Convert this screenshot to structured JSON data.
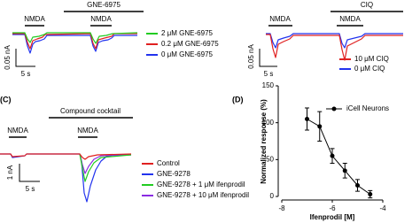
{
  "panels": [
    {
      "compound_label": "GNE-6975",
      "stimulus_labels": [
        "NMDA",
        "NMDA"
      ],
      "scale_y": "0.05 nA",
      "scale_x": "5 s",
      "legend": [
        {
          "name": "2 μM GNE-6975",
          "color": "#22cc22"
        },
        {
          "name": "0.2 μM GNE-6975",
          "color": "#e02020"
        },
        {
          "name": "0 μM GNE-6975",
          "color": "#2233ee"
        }
      ]
    },
    {
      "compound_label": "CIQ",
      "stimulus_labels": [
        "NMDA",
        "NMDA"
      ],
      "scale_y": "0.05 nA",
      "scale_x": "5 s",
      "legend": [
        {
          "name": "10 μM CIQ",
          "color": "#e02020"
        },
        {
          "name": "0 μM CIQ",
          "color": "#2233ee"
        }
      ]
    },
    {
      "panel_label": "(C)",
      "compound_label": "Compound cocktail",
      "stimulus_labels": [
        "NMDA",
        "NMDA"
      ],
      "scale_y": "1 nA",
      "scale_x": "5 s",
      "legend": [
        {
          "name": "Control",
          "color": "#e02020"
        },
        {
          "name": "GNE-9278",
          "color": "#2233ee"
        },
        {
          "name": "GNE-9278 + 1 μM ifenprodil",
          "color": "#22cc22"
        },
        {
          "name": "GNE-9278 + 10 μM ifenprodil",
          "color": "#8a2be2"
        }
      ]
    }
  ],
  "chart_data": {
    "type": "scatter",
    "panel_label": "(D)",
    "x_label": "Ifenprodil [M]",
    "y_label": "Normalized response (%)",
    "x": [
      -7,
      -6.5,
      -6,
      -5.5,
      -5,
      -4.5
    ],
    "series": [
      {
        "name": "iCell Neurons",
        "color": "#000000",
        "values": [
          105,
          95,
          55,
          35,
          15,
          3
        ],
        "errors": [
          15,
          20,
          10,
          10,
          8,
          5
        ]
      }
    ],
    "xlim": [
      -8,
      -4
    ],
    "xticks": [
      -8,
      -6,
      -4
    ],
    "ylim": [
      0,
      150
    ],
    "yticks": [
      0,
      50,
      100,
      150
    ]
  }
}
